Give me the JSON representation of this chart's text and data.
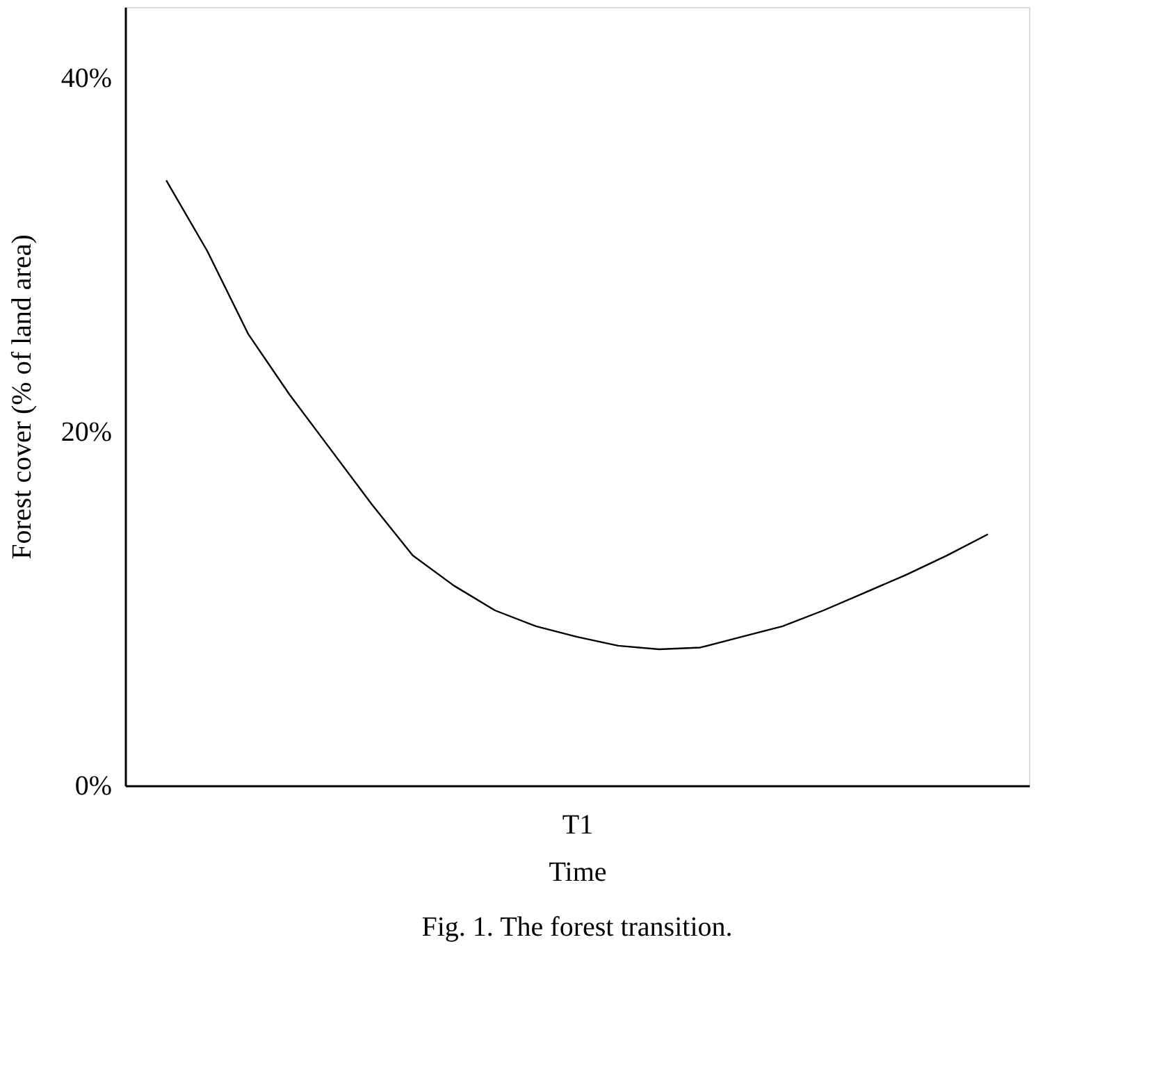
{
  "chart_data": {
    "type": "line",
    "xlabel": "Time",
    "ylabel": "Forest cover  (% of land area)",
    "categories": [
      null,
      null,
      null,
      null,
      null,
      null,
      null,
      null,
      null,
      null,
      "T1",
      null,
      null,
      null,
      null,
      null,
      null,
      null,
      null,
      null,
      null
    ],
    "series": [
      {
        "color": "#000000",
        "values": [
          34.2,
          30.2,
          25.5,
          22.1,
          19.0,
          15.9,
          13.0,
          11.3,
          9.9,
          9.0,
          8.4,
          7.9,
          7.7,
          7.8,
          8.4,
          9.0,
          9.9,
          10.9,
          11.9,
          13.0,
          14.2
        ]
      }
    ],
    "ylim": [
      0,
      44
    ],
    "yticks": [
      {
        "value": 0,
        "label": "0%"
      },
      {
        "value": 20,
        "label": "20%"
      },
      {
        "value": 40,
        "label": "40%"
      }
    ],
    "grid": false,
    "marker": "none",
    "line_style": "solid",
    "annotations": [
      "Fig. 1. The forest transition."
    ]
  }
}
